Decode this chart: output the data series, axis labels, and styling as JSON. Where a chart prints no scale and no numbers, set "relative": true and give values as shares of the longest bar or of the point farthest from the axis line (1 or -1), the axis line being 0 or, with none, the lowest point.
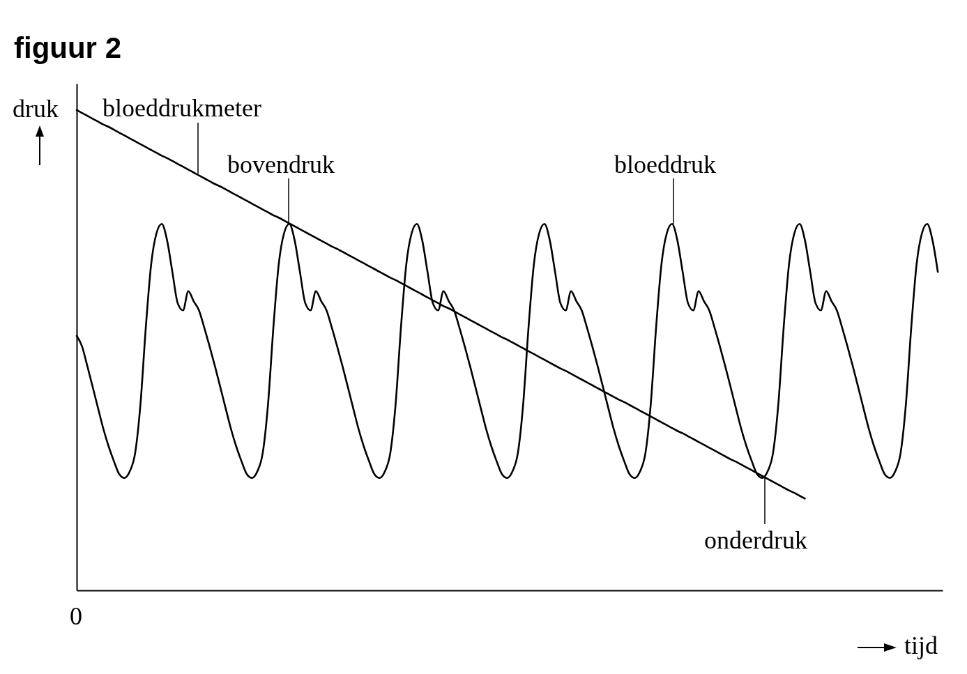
{
  "chart_data": {
    "type": "line",
    "title": "figuur 2",
    "xlabel": "tijd",
    "ylabel": "druk",
    "relative": true,
    "annotations": [
      "bovendruk",
      "onderdruk",
      "0"
    ],
    "categories": [
      null,
      null,
      null,
      null,
      null,
      null,
      null,
      null,
      null,
      null,
      null,
      null,
      null,
      null,
      null,
      null,
      null,
      null,
      null,
      null,
      null,
      null,
      null,
      null,
      null,
      null,
      null,
      null,
      null,
      null,
      null,
      null,
      null,
      null,
      null,
      null,
      null,
      null,
      null,
      null,
      null,
      null,
      null,
      null,
      null,
      null,
      null,
      null,
      null,
      null,
      null,
      null,
      null,
      null,
      null,
      null,
      null,
      null,
      null,
      null,
      null,
      null,
      null,
      null,
      null,
      null,
      null,
      null,
      null,
      null,
      null,
      null,
      null,
      null,
      null,
      null,
      null,
      null,
      null,
      null,
      null,
      null,
      null,
      null,
      null,
      null,
      null,
      null,
      null,
      null,
      null,
      null,
      null,
      null,
      null,
      null,
      null,
      null,
      null,
      null,
      null,
      null,
      null,
      null,
      null,
      null,
      null,
      null,
      null,
      null,
      null,
      null,
      null,
      null,
      null,
      null,
      null,
      null,
      null,
      null,
      null,
      null,
      null,
      null,
      null,
      null,
      null,
      null,
      null,
      null,
      null,
      null,
      null,
      null,
      null,
      null,
      null,
      null,
      null,
      null,
      null,
      null,
      null,
      null,
      null,
      null,
      null,
      null,
      null,
      null,
      null,
      null,
      null,
      null,
      null,
      null,
      null,
      null,
      null,
      null,
      null,
      null,
      null
    ],
    "series": [
      {
        "name": "bloeddrukmeter",
        "color": "#000000",
        "values": [
          1.0,
          0.994,
          0.988,
          0.982,
          0.976,
          0.97,
          0.965,
          0.959,
          0.953,
          0.947,
          0.941,
          0.935,
          0.929,
          0.923,
          0.917,
          0.911,
          0.905,
          0.9,
          0.894,
          0.888,
          0.882,
          0.876,
          0.87,
          0.864,
          0.858,
          0.852,
          0.846,
          0.841,
          0.835,
          0.829,
          0.823,
          0.817,
          0.811,
          0.805,
          0.799,
          0.793,
          0.787,
          0.781,
          0.776,
          0.77,
          0.764,
          0.758,
          0.752,
          0.746,
          0.74,
          0.734,
          0.728,
          0.722,
          0.716,
          0.711,
          0.705,
          0.699,
          0.693,
          0.687,
          0.681,
          0.675,
          0.669,
          0.663,
          0.657,
          0.651,
          0.646,
          0.64,
          0.634,
          0.628,
          0.622,
          0.616,
          0.61,
          0.604,
          0.598,
          0.592,
          0.587,
          0.581,
          0.575,
          0.569,
          0.563,
          0.557,
          0.551,
          0.545,
          0.539,
          0.533,
          0.527,
          0.522,
          0.516,
          0.51,
          0.504,
          0.498,
          0.492,
          0.486,
          0.48,
          0.474,
          0.468,
          0.462,
          0.457,
          0.451,
          0.445,
          0.439,
          0.433,
          0.427,
          0.421,
          0.415,
          0.409,
          0.403,
          0.397,
          0.392,
          0.386,
          0.38,
          0.374,
          0.368,
          0.362,
          0.356,
          0.35,
          0.344,
          0.338,
          0.332,
          0.327,
          0.321,
          0.315,
          0.309,
          0.303,
          0.297,
          0.291,
          0.285,
          0.279,
          0.273,
          0.268,
          0.262,
          0.256,
          0.25,
          0.244,
          0.238,
          0.232,
          0.226,
          0.22,
          0.214,
          0.208,
          0.203,
          0.197,
          0.191,
          null,
          null,
          null,
          null,
          null,
          null,
          null,
          null,
          null,
          null,
          null,
          null,
          null,
          null,
          null,
          null,
          null,
          null,
          null,
          null,
          null,
          null,
          null,
          null,
          null
        ]
      },
      {
        "name": "bloeddruk",
        "color": "#000000",
        "values": [
          0.53,
          0.508,
          0.467,
          0.424,
          0.38,
          0.337,
          0.3,
          0.269,
          0.242,
          0.234,
          0.248,
          0.286,
          0.388,
          0.547,
          0.678,
          0.743,
          0.763,
          0.729,
          0.663,
          0.598,
          0.583,
          0.623,
          0.602,
          0.583,
          0.547,
          0.508,
          0.467,
          0.424,
          0.38,
          0.337,
          0.3,
          0.269,
          0.242,
          0.234,
          0.248,
          0.286,
          0.388,
          0.547,
          0.678,
          0.743,
          0.763,
          0.729,
          0.663,
          0.598,
          0.583,
          0.623,
          0.602,
          0.583,
          0.547,
          0.508,
          0.467,
          0.424,
          0.38,
          0.337,
          0.3,
          0.269,
          0.242,
          0.234,
          0.248,
          0.286,
          0.388,
          0.547,
          0.678,
          0.743,
          0.763,
          0.729,
          0.663,
          0.598,
          0.583,
          0.623,
          0.602,
          0.583,
          0.547,
          0.508,
          0.467,
          0.424,
          0.38,
          0.337,
          0.3,
          0.269,
          0.242,
          0.234,
          0.248,
          0.286,
          0.388,
          0.547,
          0.678,
          0.743,
          0.763,
          0.729,
          0.663,
          0.598,
          0.583,
          0.623,
          0.602,
          0.583,
          0.547,
          0.508,
          0.467,
          0.424,
          0.38,
          0.337,
          0.3,
          0.269,
          0.242,
          0.234,
          0.248,
          0.286,
          0.388,
          0.547,
          0.678,
          0.743,
          0.763,
          0.729,
          0.663,
          0.598,
          0.583,
          0.623,
          0.602,
          0.583,
          0.547,
          0.508,
          0.467,
          0.424,
          0.38,
          0.337,
          0.3,
          0.269,
          0.242,
          0.234,
          0.248,
          0.286,
          0.388,
          0.547,
          0.678,
          0.743,
          0.763,
          0.729,
          0.663,
          0.598,
          0.583,
          0.623,
          0.602,
          0.583,
          0.547,
          0.508,
          0.467,
          0.424,
          0.38,
          0.337,
          0.3,
          0.269,
          0.242,
          0.234,
          0.248,
          0.286,
          0.388,
          0.547,
          0.678,
          0.743,
          0.763,
          0.729,
          0.663
        ]
      }
    ]
  }
}
